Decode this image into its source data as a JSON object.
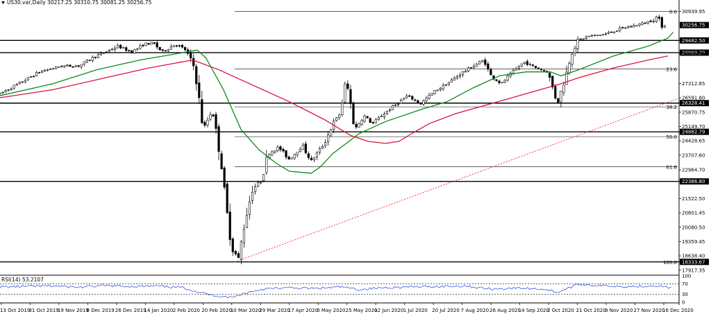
{
  "chart_data": {
    "type": "candlestick",
    "title": "US30.var,Daily  30217.25 30310.75 30081.25 30256.75",
    "symbol": "US30.var",
    "timeframe": "Daily",
    "ohlc_header": {
      "open": 30217.25,
      "high": 30310.75,
      "low": 30081.25,
      "close": 30256.75
    },
    "last_price": 30256.75,
    "y_ticks": [
      30939.95,
      29482.5,
      28869.2,
      28803.49,
      27312.85,
      26591.8,
      26328.41,
      25870.75,
      25149.7,
      24882.79,
      24428.65,
      23707.6,
      22964.7,
      22386.8,
      21522.5,
      20801.45,
      20080.5,
      19359.45,
      18638.4,
      18333.67,
      17917.35
    ],
    "ylim": [
      17700,
      31100
    ],
    "x_ticks": [
      "13 Oct 2019",
      "31 Oct 2019",
      "19 Nov 2019",
      "8 Dec 2019",
      "26 Dec 2019",
      "14 Jan 2020",
      "2 Feb 2020",
      "20 Feb 2020",
      "10 Mar 2020",
      "29 Mar 2020",
      "17 Apr 2020",
      "6 May 2020",
      "25 May 2020",
      "12 Jun 2020",
      "1 Jul 2020",
      "20 Jul 2020",
      "7 Aug 2020",
      "26 Aug 2020",
      "14 Sep 2020",
      "2 Oct 2020",
      "21 Oct 2020",
      "9 Nov 2020",
      "27 Nov 2020",
      "16 Dec 2020"
    ],
    "horizontal_levels": [
      {
        "price": 29482.5,
        "label": "29482.50"
      },
      {
        "price": 28869.2,
        "label": "28869.20"
      },
      {
        "price": 26328.41,
        "label": "26328.41"
      },
      {
        "price": 24882.79,
        "label": "24882.79"
      },
      {
        "price": 22386.8,
        "label": "22386.80"
      },
      {
        "price": 18333.67,
        "label": "18333.67"
      }
    ],
    "fibonacci": [
      {
        "level": "0.0",
        "price": 30939.95
      },
      {
        "level": "23.6",
        "price": 28040
      },
      {
        "level": "38.2",
        "price": 26140
      },
      {
        "level": "50.0",
        "price": 24640
      },
      {
        "level": "61.8",
        "price": 23130
      },
      {
        "level": "100.0",
        "price": 18333.67
      }
    ],
    "trendline": {
      "from_price": 18333.67,
      "to_price": 26550,
      "color": "#ff0000"
    },
    "close_path": [
      {
        "x": 0,
        "y": 26800
      },
      {
        "x": 25,
        "y": 27400
      },
      {
        "x": 45,
        "y": 27900
      },
      {
        "x": 70,
        "y": 28200
      },
      {
        "x": 90,
        "y": 28200
      },
      {
        "x": 105,
        "y": 28600
      },
      {
        "x": 125,
        "y": 29000
      },
      {
        "x": 135,
        "y": 29200
      },
      {
        "x": 150,
        "y": 28900
      },
      {
        "x": 165,
        "y": 29300
      },
      {
        "x": 175,
        "y": 29350
      },
      {
        "x": 185,
        "y": 28900
      },
      {
        "x": 200,
        "y": 29300
      },
      {
        "x": 212,
        "y": 29000
      },
      {
        "x": 222,
        "y": 28100
      },
      {
        "x": 232,
        "y": 25000
      },
      {
        "x": 242,
        "y": 26000
      },
      {
        "x": 252,
        "y": 23500
      },
      {
        "x": 258,
        "y": 21000
      },
      {
        "x": 265,
        "y": 19000
      },
      {
        "x": 272,
        "y": 18500
      },
      {
        "x": 280,
        "y": 20500
      },
      {
        "x": 288,
        "y": 22000
      },
      {
        "x": 298,
        "y": 22400
      },
      {
        "x": 306,
        "y": 23800
      },
      {
        "x": 318,
        "y": 24100
      },
      {
        "x": 330,
        "y": 23500
      },
      {
        "x": 345,
        "y": 24200
      },
      {
        "x": 355,
        "y": 23400
      },
      {
        "x": 370,
        "y": 24300
      },
      {
        "x": 380,
        "y": 25300
      },
      {
        "x": 388,
        "y": 25800
      },
      {
        "x": 395,
        "y": 27500
      },
      {
        "x": 405,
        "y": 25000
      },
      {
        "x": 415,
        "y": 25700
      },
      {
        "x": 425,
        "y": 25300
      },
      {
        "x": 438,
        "y": 25800
      },
      {
        "x": 450,
        "y": 26200
      },
      {
        "x": 465,
        "y": 26700
      },
      {
        "x": 480,
        "y": 26300
      },
      {
        "x": 495,
        "y": 26900
      },
      {
        "x": 510,
        "y": 27300
      },
      {
        "x": 525,
        "y": 27800
      },
      {
        "x": 540,
        "y": 28200
      },
      {
        "x": 552,
        "y": 28500
      },
      {
        "x": 560,
        "y": 27700
      },
      {
        "x": 572,
        "y": 27300
      },
      {
        "x": 585,
        "y": 27900
      },
      {
        "x": 598,
        "y": 28400
      },
      {
        "x": 612,
        "y": 28100
      },
      {
        "x": 625,
        "y": 27900
      },
      {
        "x": 636,
        "y": 26300
      },
      {
        "x": 645,
        "y": 27600
      },
      {
        "x": 652,
        "y": 28900
      },
      {
        "x": 660,
        "y": 29500
      },
      {
        "x": 672,
        "y": 29700
      },
      {
        "x": 690,
        "y": 29800
      },
      {
        "x": 710,
        "y": 30100
      },
      {
        "x": 730,
        "y": 30300
      },
      {
        "x": 745,
        "y": 30500
      },
      {
        "x": 750,
        "y": 30700
      },
      {
        "x": 755,
        "y": 30256
      }
    ],
    "ma_slow": [
      {
        "x": 0,
        "y": 26600
      },
      {
        "x": 60,
        "y": 27000
      },
      {
        "x": 120,
        "y": 27600
      },
      {
        "x": 170,
        "y": 28100
      },
      {
        "x": 220,
        "y": 28500
      },
      {
        "x": 250,
        "y": 28000
      },
      {
        "x": 290,
        "y": 27200
      },
      {
        "x": 330,
        "y": 26400
      },
      {
        "x": 370,
        "y": 25500
      },
      {
        "x": 400,
        "y": 24700
      },
      {
        "x": 420,
        "y": 24400
      },
      {
        "x": 440,
        "y": 24300
      },
      {
        "x": 455,
        "y": 24400
      },
      {
        "x": 470,
        "y": 24800
      },
      {
        "x": 490,
        "y": 25300
      },
      {
        "x": 520,
        "y": 25800
      },
      {
        "x": 560,
        "y": 26300
      },
      {
        "x": 600,
        "y": 26800
      },
      {
        "x": 640,
        "y": 27300
      },
      {
        "x": 660,
        "y": 27600
      },
      {
        "x": 700,
        "y": 28100
      },
      {
        "x": 740,
        "y": 28500
      },
      {
        "x": 762,
        "y": 28700
      }
    ],
    "ma_fast": [
      {
        "x": 0,
        "y": 26700
      },
      {
        "x": 60,
        "y": 27300
      },
      {
        "x": 110,
        "y": 28000
      },
      {
        "x": 160,
        "y": 28500
      },
      {
        "x": 200,
        "y": 28800
      },
      {
        "x": 225,
        "y": 29000
      },
      {
        "x": 235,
        "y": 28600
      },
      {
        "x": 255,
        "y": 27000
      },
      {
        "x": 275,
        "y": 25000
      },
      {
        "x": 295,
        "y": 24000
      },
      {
        "x": 315,
        "y": 23300
      },
      {
        "x": 330,
        "y": 22900
      },
      {
        "x": 355,
        "y": 22800
      },
      {
        "x": 365,
        "y": 23100
      },
      {
        "x": 380,
        "y": 23800
      },
      {
        "x": 410,
        "y": 24800
      },
      {
        "x": 440,
        "y": 25400
      },
      {
        "x": 480,
        "y": 26000
      },
      {
        "x": 510,
        "y": 26400
      },
      {
        "x": 540,
        "y": 27100
      },
      {
        "x": 570,
        "y": 27700
      },
      {
        "x": 600,
        "y": 27900
      },
      {
        "x": 628,
        "y": 27900
      },
      {
        "x": 640,
        "y": 27700
      },
      {
        "x": 660,
        "y": 28000
      },
      {
        "x": 700,
        "y": 28700
      },
      {
        "x": 740,
        "y": 29200
      },
      {
        "x": 762,
        "y": 29600
      },
      {
        "x": 768,
        "y": 29900
      }
    ],
    "rsi": {
      "label": "RSI(14) 53.2107",
      "period": 14,
      "value": 53.2107,
      "levels": [
        70,
        30
      ],
      "ticks": [
        100,
        70,
        30,
        0
      ],
      "points": [
        {
          "x": 0,
          "y": 58
        },
        {
          "x": 30,
          "y": 60
        },
        {
          "x": 60,
          "y": 62
        },
        {
          "x": 90,
          "y": 57
        },
        {
          "x": 120,
          "y": 63
        },
        {
          "x": 150,
          "y": 60
        },
        {
          "x": 180,
          "y": 61
        },
        {
          "x": 210,
          "y": 55
        },
        {
          "x": 225,
          "y": 40
        },
        {
          "x": 240,
          "y": 28
        },
        {
          "x": 255,
          "y": 22
        },
        {
          "x": 265,
          "y": 18
        },
        {
          "x": 280,
          "y": 35
        },
        {
          "x": 300,
          "y": 50
        },
        {
          "x": 330,
          "y": 55
        },
        {
          "x": 360,
          "y": 52
        },
        {
          "x": 390,
          "y": 58
        },
        {
          "x": 410,
          "y": 48
        },
        {
          "x": 440,
          "y": 56
        },
        {
          "x": 470,
          "y": 58
        },
        {
          "x": 500,
          "y": 60
        },
        {
          "x": 530,
          "y": 62
        },
        {
          "x": 560,
          "y": 50
        },
        {
          "x": 590,
          "y": 54
        },
        {
          "x": 620,
          "y": 50
        },
        {
          "x": 636,
          "y": 38
        },
        {
          "x": 660,
          "y": 68
        },
        {
          "x": 690,
          "y": 62
        },
        {
          "x": 720,
          "y": 60
        },
        {
          "x": 750,
          "y": 63
        },
        {
          "x": 768,
          "y": 53
        }
      ]
    },
    "colors": {
      "bull_candle": "#ffffff",
      "bear_candle": "#000000",
      "ma_slow": "#dc0f3c",
      "ma_fast": "#0a8a14",
      "rsi_line": "#1e3cdc",
      "level_line": "#000000",
      "fib_line": "#000000",
      "trendline": "#ff0000"
    },
    "grid": false,
    "legend": "none"
  }
}
